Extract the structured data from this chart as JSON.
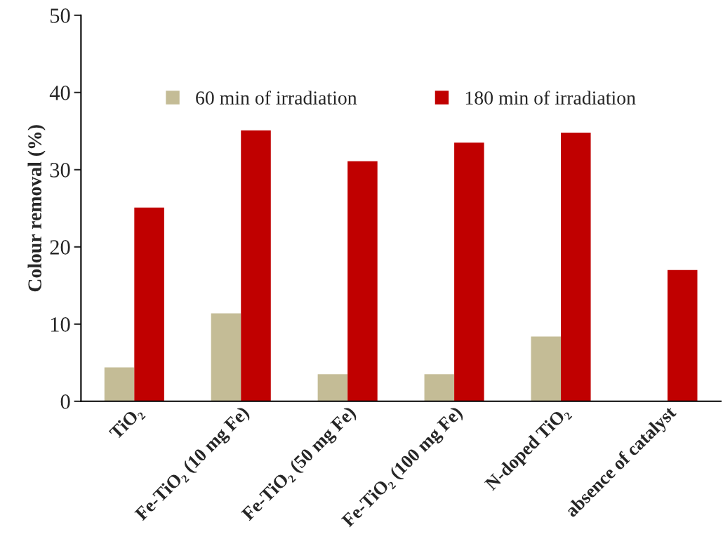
{
  "chart_data": {
    "type": "bar",
    "ylabel": "Colour removal (%)",
    "categories": [
      "TiO₂",
      "Fe-TiO₂ (10 mg Fe)",
      "Fe-TiO₂ (50 mg Fe)",
      "Fe-TiO₂ (100 mg Fe)",
      "N-doped TiO₂",
      "absence of catalyst"
    ],
    "series": [
      {
        "name": "60 min of irradiation",
        "color": "#c4bc96",
        "values": [
          4.4,
          11.4,
          3.5,
          3.5,
          8.4,
          null
        ]
      },
      {
        "name": "180 min of irradiation",
        "color": "#c00000",
        "values": [
          25.1,
          35.1,
          31.1,
          33.5,
          34.8,
          17.0
        ]
      }
    ],
    "ylim": [
      0,
      50
    ],
    "yticks": [
      0,
      10,
      20,
      30,
      40,
      50
    ],
    "grid": false,
    "legend": "top"
  }
}
